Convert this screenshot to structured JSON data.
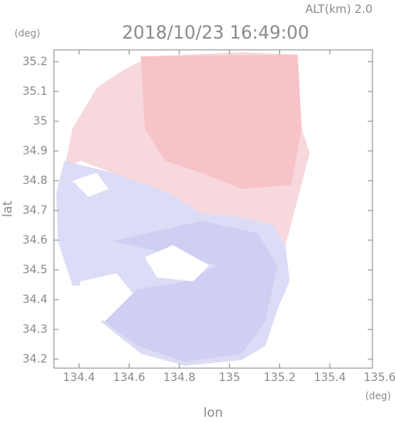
{
  "chart_data": {
    "type": "map",
    "title": "2018/10/23 16:49:00",
    "subtitle": "ALT(km) 2.0",
    "x_label": "lon",
    "y_label": "lat",
    "x_unit": "(deg)",
    "y_unit": "(deg)",
    "xlim": [
      134.3,
      135.57
    ],
    "ylim": [
      34.17,
      35.24
    ],
    "xticks": [
      134.4,
      134.6,
      134.8,
      135.0,
      135.2,
      135.4,
      135.6
    ],
    "yticks": [
      34.2,
      34.3,
      34.4,
      34.5,
      34.6,
      34.7,
      34.8,
      34.9,
      35.0,
      35.1,
      35.2
    ]
  }
}
